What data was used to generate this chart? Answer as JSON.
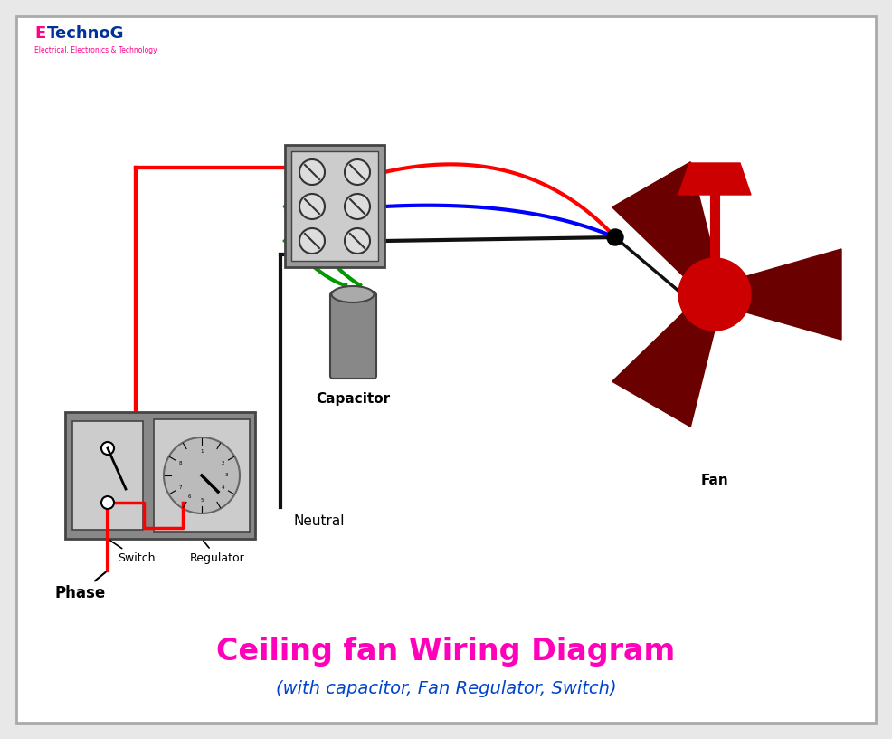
{
  "bg_color": "#e8e8e8",
  "inner_bg": "#ffffff",
  "title": "Ceiling fan Wiring Diagram",
  "subtitle": "(with capacitor, Fan Regulator, Switch)",
  "title_color": "#ff00bb",
  "subtitle_color": "#0044cc",
  "wire_red": "#ff0000",
  "wire_black": "#111111",
  "wire_blue": "#0000ff",
  "wire_green": "#009900",
  "fan_blade_color": "#6b0000",
  "fan_body_color": "#cc0000",
  "capacitor_color": "#888888",
  "switch_box_color": "#888888",
  "terminal_gray": "#999999",
  "terminal_light": "#cccccc",
  "screw_face": "#dddddd",
  "label_phase": "Phase",
  "label_switch": "Switch",
  "label_regulator": "Regulator",
  "label_neutral": "Neutral",
  "label_capacitor": "Capacitor",
  "label_fan": "Fan",
  "lw_wire": 3.0
}
